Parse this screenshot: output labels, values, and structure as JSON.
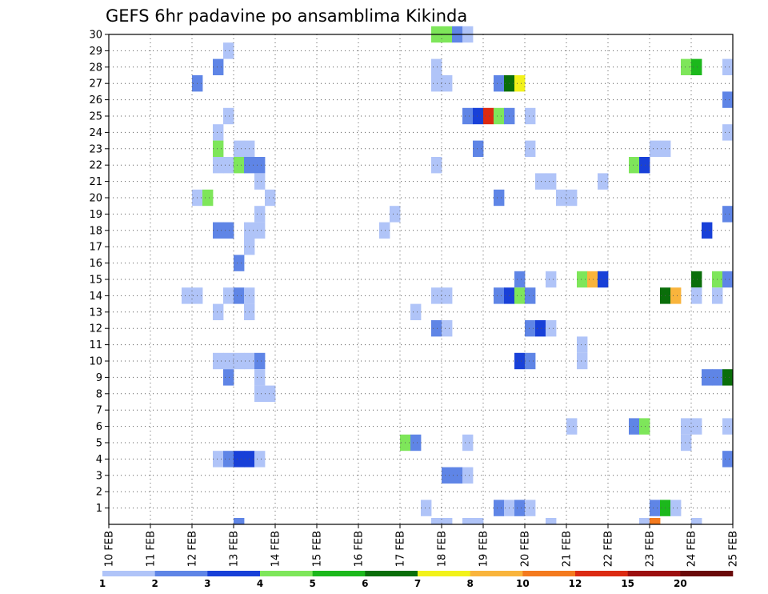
{
  "chart_data": {
    "type": "heatmap",
    "title": "GEFS 6hr padavine po ansamblima Kikinda",
    "xlabel": "",
    "ylabel": "",
    "x_ticks": [
      "10 FEB",
      "11 FEB",
      "12 FEB",
      "13 FEB",
      "14 FEB",
      "15 FEB",
      "16 FEB",
      "17 FEB",
      "18 FEB",
      "19 FEB",
      "20 FEB",
      "21 FEB",
      "22 FEB",
      "23 FEB",
      "24 FEB",
      "25 FEB"
    ],
    "y_ticks": [
      1,
      2,
      3,
      4,
      5,
      6,
      7,
      8,
      9,
      10,
      11,
      12,
      13,
      14,
      15,
      16,
      17,
      18,
      19,
      20,
      21,
      22,
      23,
      24,
      25,
      26,
      27,
      28,
      29,
      30
    ],
    "xlim": [
      0,
      60
    ],
    "ylim": [
      0,
      30
    ],
    "grid": true,
    "colorbar": {
      "labels": [
        "1",
        "2",
        "3",
        "4",
        "5",
        "6",
        "7",
        "8",
        "10",
        "12",
        "15",
        "20",
        ""
      ],
      "colors": [
        "#b0c4f8",
        "#5f85e6",
        "#1840d8",
        "#7ee65a",
        "#1cb81c",
        "#0a6e0a",
        "#f2f21a",
        "#f9b43c",
        "#f47a1e",
        "#dc2a12",
        "#9c0f0f",
        "#6a0a0a"
      ]
    },
    "cells": [
      [
        31,
        30,
        4
      ],
      [
        32,
        30,
        4
      ],
      [
        33,
        30,
        2
      ],
      [
        34,
        30,
        1
      ],
      [
        11,
        29,
        1
      ],
      [
        10,
        28,
        2
      ],
      [
        31,
        28,
        1
      ],
      [
        55,
        28,
        4
      ],
      [
        56,
        28,
        5
      ],
      [
        59,
        28,
        1
      ],
      [
        8,
        27,
        2
      ],
      [
        31,
        27,
        1
      ],
      [
        32,
        27,
        1
      ],
      [
        37,
        27,
        2
      ],
      [
        38,
        27,
        6
      ],
      [
        39,
        27,
        7
      ],
      [
        59,
        26,
        2
      ],
      [
        11,
        25,
        1
      ],
      [
        34,
        25,
        2
      ],
      [
        35,
        25,
        3
      ],
      [
        36,
        25,
        10
      ],
      [
        37,
        25,
        4
      ],
      [
        38,
        25,
        2
      ],
      [
        40,
        25,
        1
      ],
      [
        10,
        24,
        1
      ],
      [
        59,
        24,
        1
      ],
      [
        10,
        23,
        4
      ],
      [
        12,
        23,
        1
      ],
      [
        13,
        23,
        1
      ],
      [
        35,
        23,
        2
      ],
      [
        40,
        23,
        1
      ],
      [
        52,
        23,
        1
      ],
      [
        53,
        23,
        1
      ],
      [
        10,
        22,
        1
      ],
      [
        11,
        22,
        1
      ],
      [
        12,
        22,
        4
      ],
      [
        13,
        22,
        2
      ],
      [
        14,
        22,
        2
      ],
      [
        31,
        22,
        1
      ],
      [
        50,
        22,
        4
      ],
      [
        51,
        22,
        3
      ],
      [
        14,
        21,
        1
      ],
      [
        41,
        21,
        1
      ],
      [
        42,
        21,
        1
      ],
      [
        47,
        21,
        1
      ],
      [
        8,
        20,
        1
      ],
      [
        9,
        20,
        4
      ],
      [
        15,
        20,
        1
      ],
      [
        37,
        20,
        2
      ],
      [
        43,
        20,
        1
      ],
      [
        44,
        20,
        1
      ],
      [
        14,
        19,
        1
      ],
      [
        27,
        19,
        1
      ],
      [
        59,
        19,
        2
      ],
      [
        10,
        18,
        2
      ],
      [
        11,
        18,
        2
      ],
      [
        13,
        18,
        1
      ],
      [
        14,
        18,
        1
      ],
      [
        26,
        18,
        1
      ],
      [
        57,
        18,
        3
      ],
      [
        13,
        17,
        1
      ],
      [
        12,
        16,
        2
      ],
      [
        39,
        15,
        2
      ],
      [
        42,
        15,
        1
      ],
      [
        45,
        15,
        4
      ],
      [
        46,
        15,
        8
      ],
      [
        47,
        15,
        3
      ],
      [
        56,
        15,
        6
      ],
      [
        58,
        15,
        4
      ],
      [
        59,
        15,
        2
      ],
      [
        7,
        14,
        1
      ],
      [
        8,
        14,
        1
      ],
      [
        11,
        14,
        1
      ],
      [
        12,
        14,
        2
      ],
      [
        13,
        14,
        1
      ],
      [
        31,
        14,
        1
      ],
      [
        32,
        14,
        1
      ],
      [
        37,
        14,
        2
      ],
      [
        38,
        14,
        3
      ],
      [
        39,
        14,
        4
      ],
      [
        40,
        14,
        2
      ],
      [
        53,
        14,
        6
      ],
      [
        54,
        14,
        8
      ],
      [
        56,
        14,
        1
      ],
      [
        58,
        14,
        1
      ],
      [
        10,
        13,
        1
      ],
      [
        13,
        13,
        1
      ],
      [
        29,
        13,
        1
      ],
      [
        31,
        12,
        2
      ],
      [
        32,
        12,
        1
      ],
      [
        40,
        12,
        2
      ],
      [
        41,
        12,
        3
      ],
      [
        42,
        12,
        1
      ],
      [
        45,
        11,
        1
      ],
      [
        10,
        10,
        1
      ],
      [
        11,
        10,
        1
      ],
      [
        12,
        10,
        1
      ],
      [
        13,
        10,
        1
      ],
      [
        14,
        10,
        2
      ],
      [
        39,
        10,
        3
      ],
      [
        40,
        10,
        2
      ],
      [
        45,
        10,
        1
      ],
      [
        11,
        9,
        2
      ],
      [
        14,
        9,
        1
      ],
      [
        57,
        9,
        2
      ],
      [
        58,
        9,
        2
      ],
      [
        59,
        9,
        6
      ],
      [
        14,
        8,
        1
      ],
      [
        15,
        8,
        1
      ],
      [
        44,
        6,
        1
      ],
      [
        50,
        6,
        2
      ],
      [
        51,
        6,
        4
      ],
      [
        55,
        6,
        1
      ],
      [
        56,
        6,
        1
      ],
      [
        59,
        6,
        1
      ],
      [
        28,
        5,
        4
      ],
      [
        29,
        5,
        2
      ],
      [
        34,
        5,
        1
      ],
      [
        55,
        5,
        1
      ],
      [
        10,
        4,
        1
      ],
      [
        11,
        4,
        2
      ],
      [
        12,
        4,
        3
      ],
      [
        13,
        4,
        3
      ],
      [
        14,
        4,
        1
      ],
      [
        59,
        4,
        2
      ],
      [
        32,
        3,
        2
      ],
      [
        33,
        3,
        2
      ],
      [
        34,
        3,
        1
      ],
      [
        30,
        1,
        1
      ],
      [
        37,
        1,
        2
      ],
      [
        38,
        1,
        1
      ],
      [
        39,
        1,
        2
      ],
      [
        40,
        1,
        1
      ],
      [
        52,
        1,
        2
      ],
      [
        53,
        1,
        5
      ],
      [
        54,
        1,
        1
      ],
      [
        12,
        0,
        2
      ],
      [
        31,
        0,
        1
      ],
      [
        32,
        0,
        1
      ],
      [
        34,
        0,
        1
      ],
      [
        35,
        0,
        1
      ],
      [
        42,
        0,
        1
      ],
      [
        51,
        0,
        1
      ],
      [
        52,
        0,
        9
      ],
      [
        56,
        0,
        1
      ]
    ]
  }
}
